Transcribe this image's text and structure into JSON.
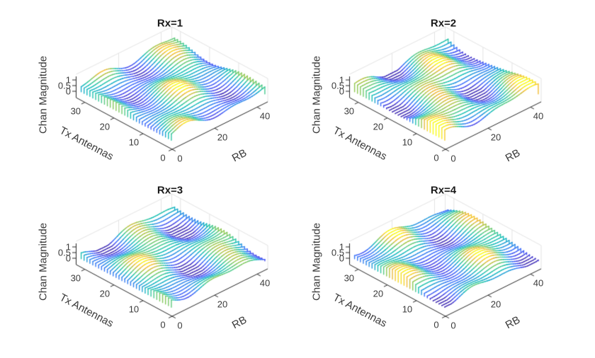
{
  "figure": {
    "background": "#ffffff",
    "axis_line_color": "#262626",
    "tick_label_color": "#3a3a3a",
    "title_color": "#1a1a1a",
    "grid_color": "#e4e4e4"
  },
  "chart_data": {
    "type": "waterfall3d-grid",
    "layout": "2x2",
    "colormap": "parula",
    "parula_stops": [
      [
        0.0,
        "#3e26a8"
      ],
      [
        0.125,
        "#4747eb"
      ],
      [
        0.25,
        "#3e6ffe"
      ],
      [
        0.375,
        "#2593e3"
      ],
      [
        0.5,
        "#12beb9"
      ],
      [
        0.625,
        "#4acb8d"
      ],
      [
        0.75,
        "#9cc84a"
      ],
      [
        0.875,
        "#f3b837"
      ],
      [
        1.0,
        "#f9fb14"
      ]
    ],
    "subplots": [
      {
        "title": "Rx=1",
        "xlabel": "RB",
        "ylabel": "Tx Antennas",
        "zlabel": "Chan Magnitude",
        "x_ticks": [
          0,
          20,
          40
        ],
        "y_ticks": [
          0,
          10,
          20,
          30
        ],
        "z_ticks": [
          0,
          0.5,
          1
        ],
        "x_range": [
          0,
          45
        ],
        "y_range": [
          0,
          33
        ],
        "z_range": [
          0,
          1
        ],
        "n_lines": 32,
        "n_points": 45,
        "surface_params": {
          "base": 0.46,
          "amps": [
            0.28,
            0.18,
            0.12
          ],
          "kx": [
            0.17,
            0.3,
            0.05
          ],
          "ky": [
            -0.2,
            0.16,
            0.33
          ],
          "phases": [
            0.5,
            -1.1,
            2.0
          ]
        }
      },
      {
        "title": "Rx=2",
        "xlabel": "RB",
        "ylabel": "Tx Antennas",
        "zlabel": "Chan Magnitude",
        "x_ticks": [
          0,
          20,
          40
        ],
        "y_ticks": [
          0,
          10,
          20,
          30
        ],
        "z_ticks": [
          0,
          0.5,
          1
        ],
        "x_range": [
          0,
          45
        ],
        "y_range": [
          0,
          33
        ],
        "z_range": [
          0,
          1
        ],
        "n_lines": 32,
        "n_points": 45,
        "surface_params": {
          "base": 0.5,
          "amps": [
            0.32,
            0.18,
            0.12
          ],
          "kx": [
            0.17,
            0.3,
            0.05
          ],
          "ky": [
            -0.2,
            0.16,
            0.33
          ],
          "phases": [
            1.7,
            0.6,
            -0.9
          ]
        }
      },
      {
        "title": "Rx=3",
        "xlabel": "RB",
        "ylabel": "Tx Antennas",
        "zlabel": "Chan Magnitude",
        "x_ticks": [
          0,
          20,
          40
        ],
        "y_ticks": [
          0,
          10,
          20,
          30
        ],
        "z_ticks": [
          0,
          0.5,
          1
        ],
        "x_range": [
          0,
          45
        ],
        "y_range": [
          0,
          33
        ],
        "z_range": [
          0,
          1
        ],
        "n_lines": 32,
        "n_points": 45,
        "surface_params": {
          "base": 0.46,
          "amps": [
            0.28,
            0.18,
            0.12
          ],
          "kx": [
            0.17,
            0.3,
            0.05
          ],
          "ky": [
            -0.2,
            0.16,
            0.33
          ],
          "phases": [
            3.1,
            2.3,
            0.8
          ]
        }
      },
      {
        "title": "Rx=4",
        "xlabel": "RB",
        "ylabel": "Tx Antennas",
        "zlabel": "Chan Magnitude",
        "x_ticks": [
          0,
          20,
          40
        ],
        "y_ticks": [
          0,
          10,
          20,
          30
        ],
        "z_ticks": [
          0,
          0.5,
          1
        ],
        "x_range": [
          0,
          45
        ],
        "y_range": [
          0,
          33
        ],
        "z_range": [
          0,
          1
        ],
        "n_lines": 32,
        "n_points": 45,
        "surface_params": {
          "base": 0.46,
          "amps": [
            0.28,
            0.18,
            0.12
          ],
          "kx": [
            0.17,
            0.3,
            0.05
          ],
          "ky": [
            -0.2,
            0.16,
            0.33
          ],
          "phases": [
            4.6,
            4.0,
            3.0
          ]
        }
      }
    ]
  }
}
